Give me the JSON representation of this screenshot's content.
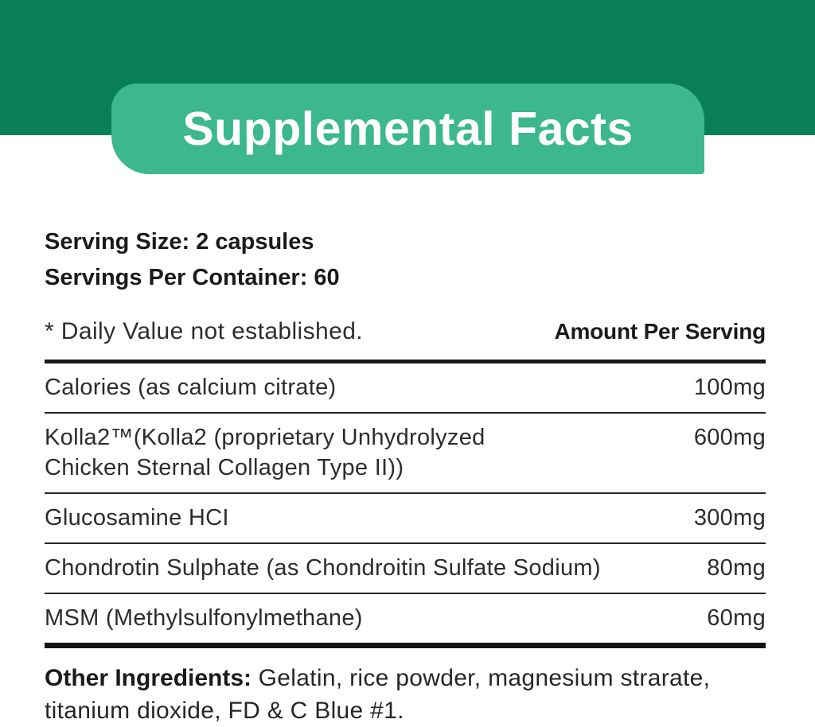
{
  "colors": {
    "banner_dark_green": "#087F57",
    "banner_light_green": "#3CB78E",
    "text_dark": "#1A1A1A",
    "text_body": "#2C2C2C",
    "rule_black": "#1B1B1B",
    "title_white": "#FFFFFF"
  },
  "title": "Supplemental Facts",
  "serving_info": {
    "serving_size": "Serving Size: 2 capsules",
    "servings_per_container": "Servings Per Container: 60"
  },
  "table": {
    "footnote": "* Daily Value not established.",
    "amount_header": "Amount Per Serving",
    "rows": [
      {
        "name": "Calories (as calcium citrate)",
        "amount": "100mg"
      },
      {
        "name": "Kolla2™(Kolla2 (proprietary Unhydrolyzed Chicken Sternal Collagen Type II))",
        "amount": "600mg"
      },
      {
        "name": "Glucosamine HCI",
        "amount": "300mg"
      },
      {
        "name": "Chondrotin Sulphate (as Chondroitin Sulfate Sodium)",
        "amount": "80mg"
      },
      {
        "name": "MSM (Methylsulfonylmethane)",
        "amount": "60mg"
      }
    ]
  },
  "other_ingredients": {
    "label": "Other Ingredients:",
    "text": "Gelatin, rice powder, magnesium strarate, titanium dioxide, FD & C Blue #1."
  }
}
